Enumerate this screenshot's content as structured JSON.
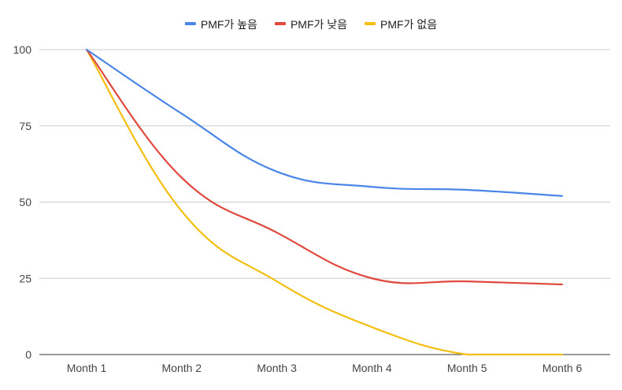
{
  "chart_data": {
    "type": "line",
    "title": "",
    "xlabel": "",
    "ylabel": "",
    "categories": [
      "Month 1",
      "Month 2",
      "Month 3",
      "Month 4",
      "Month 5",
      "Month 6"
    ],
    "ylim": [
      0,
      100
    ],
    "yticks": [
      0,
      25,
      50,
      75,
      100
    ],
    "grid": true,
    "legend_position": "top-center",
    "series": [
      {
        "name": "PMF가 높음",
        "color": "#4a86e8",
        "values": [
          100,
          79,
          60,
          55,
          54,
          52
        ]
      },
      {
        "name": "PMF가 낮음",
        "color": "#e0493d",
        "values": [
          100,
          58,
          40,
          25,
          24,
          23
        ]
      },
      {
        "name": "PMF가 없음",
        "color": "#f4bf12",
        "values": [
          100,
          47,
          24,
          9,
          0,
          0
        ]
      }
    ]
  }
}
